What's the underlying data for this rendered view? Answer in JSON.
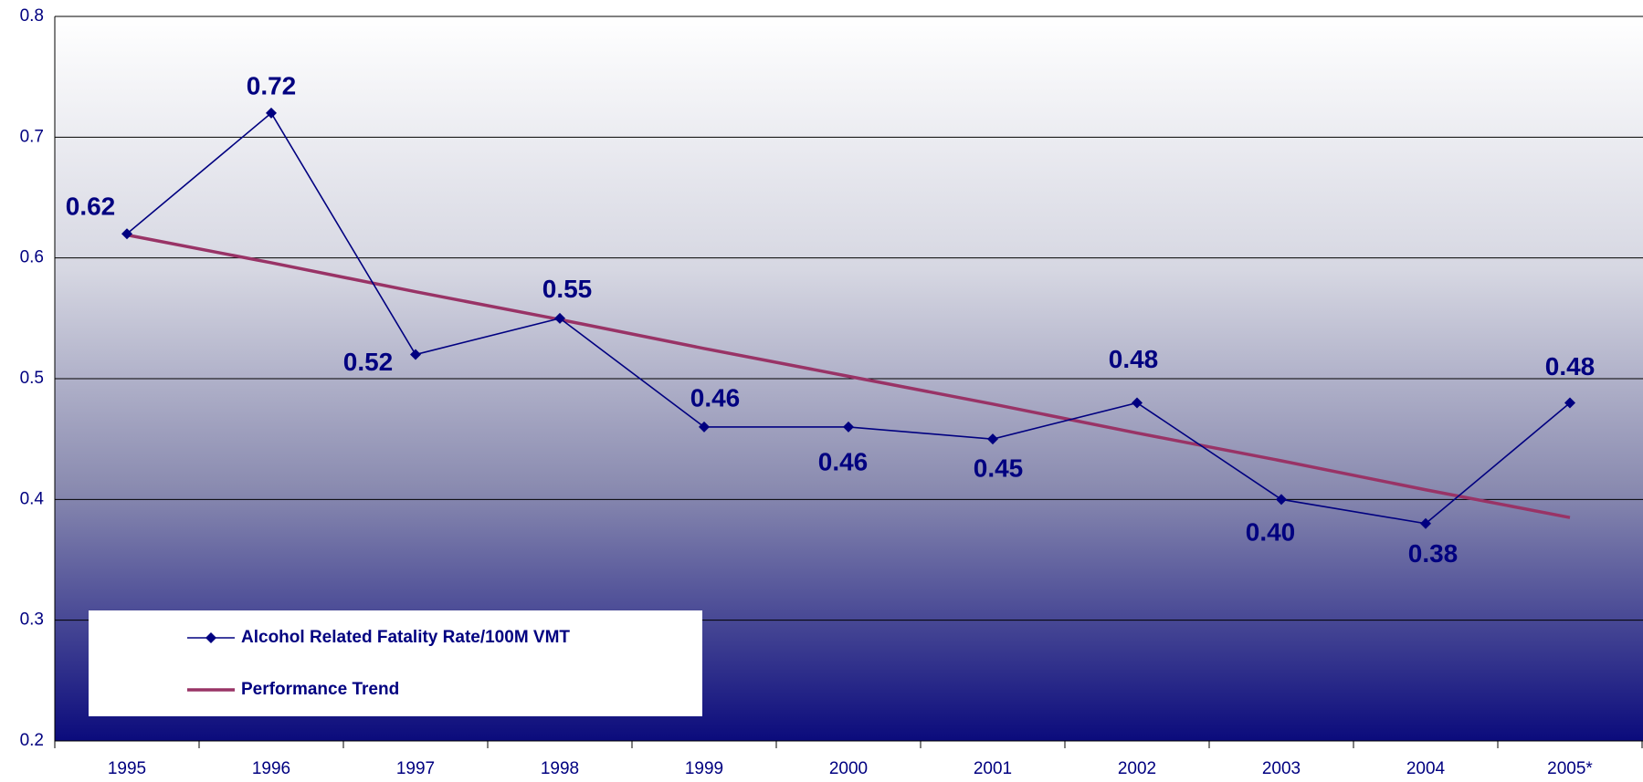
{
  "chart_data": {
    "type": "line",
    "categories": [
      "1995",
      "1996",
      "1997",
      "1998",
      "1999",
      "2000",
      "2001",
      "2002",
      "2003",
      "2004",
      "2005*"
    ],
    "series": [
      {
        "name": "Alcohol Related Fatality Rate/100M VMT",
        "color": "#000080",
        "marker": "diamond",
        "values": [
          0.62,
          0.72,
          0.52,
          0.55,
          0.46,
          0.46,
          0.45,
          0.48,
          0.4,
          0.38,
          0.48
        ],
        "value_labels": [
          "0.62",
          "0.72",
          "0.52",
          "0.55",
          "0.46",
          "0.46",
          "0.45",
          "0.48",
          "0.40",
          "0.38",
          "0.48"
        ]
      },
      {
        "name": "Performance Trend",
        "color": "#993366",
        "values": [
          0.619,
          0.596,
          0.572,
          0.549,
          0.525,
          0.502,
          0.479,
          0.455,
          0.432,
          0.408,
          0.385
        ]
      }
    ],
    "ylim": [
      0.2,
      0.8
    ],
    "yticks": [
      0.2,
      0.3,
      0.4,
      0.5,
      0.6,
      0.7,
      0.8
    ],
    "grid": true,
    "legend": "bottom-left"
  }
}
